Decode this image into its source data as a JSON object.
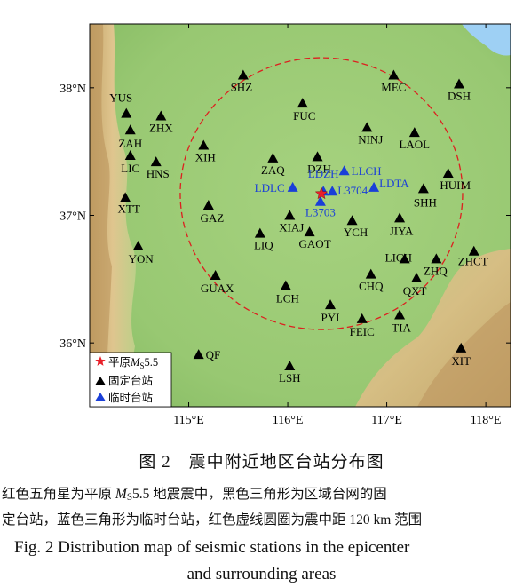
{
  "figure": {
    "lat_labels": [
      "38°N",
      "37°N",
      "36°N"
    ],
    "lon_labels": [
      "115°E",
      "116°E",
      "117°E",
      "118°E"
    ],
    "epicenter": {
      "lon": 116.34,
      "lat": 37.17
    },
    "fixed_stations": [
      {
        "code": "YUS",
        "lon": 114.37,
        "lat": 37.8
      },
      {
        "code": "ZAH",
        "lon": 114.41,
        "lat": 37.67
      },
      {
        "code": "LIC",
        "lon": 114.41,
        "lat": 37.47
      },
      {
        "code": "XTT",
        "lon": 114.36,
        "lat": 37.14
      },
      {
        "code": "YON",
        "lon": 114.49,
        "lat": 36.76
      },
      {
        "code": "ZHX",
        "lon": 114.72,
        "lat": 37.78
      },
      {
        "code": "HNS",
        "lon": 114.67,
        "lat": 37.42
      },
      {
        "code": "XIH",
        "lon": 115.15,
        "lat": 37.55
      },
      {
        "code": "SHZ",
        "lon": 115.55,
        "lat": 38.1
      },
      {
        "code": "FUC",
        "lon": 116.15,
        "lat": 37.88
      },
      {
        "code": "GAZ",
        "lon": 115.2,
        "lat": 37.08
      },
      {
        "code": "ZAQ",
        "lon": 115.85,
        "lat": 37.45
      },
      {
        "code": "DZH",
        "lon": 116.3,
        "lat": 37.46
      },
      {
        "code": "NINJ",
        "lon": 116.8,
        "lat": 37.69
      },
      {
        "code": "MEC",
        "lon": 117.07,
        "lat": 38.1
      },
      {
        "code": "DSH",
        "lon": 117.73,
        "lat": 38.03
      },
      {
        "code": "LAOL",
        "lon": 117.28,
        "lat": 37.65
      },
      {
        "code": "HUIM",
        "lon": 117.62,
        "lat": 37.33
      },
      {
        "code": "SHH",
        "lon": 117.37,
        "lat": 37.21
      },
      {
        "code": "XIAJ",
        "lon": 116.02,
        "lat": 37.0
      },
      {
        "code": "LIQ",
        "lon": 115.72,
        "lat": 36.86
      },
      {
        "code": "GAOT",
        "lon": 116.22,
        "lat": 36.87
      },
      {
        "code": "YCH",
        "lon": 116.65,
        "lat": 36.96
      },
      {
        "code": "JIYA",
        "lon": 117.13,
        "lat": 36.98
      },
      {
        "code": "GUAX",
        "lon": 115.27,
        "lat": 36.53
      },
      {
        "code": "LCH",
        "lon": 115.98,
        "lat": 36.45
      },
      {
        "code": "LICH",
        "lon": 117.18,
        "lat": 36.66
      },
      {
        "code": "ZHQ",
        "lon": 117.5,
        "lat": 36.66
      },
      {
        "code": "ZHCT",
        "lon": 117.88,
        "lat": 36.72
      },
      {
        "code": "CHQ",
        "lon": 116.84,
        "lat": 36.54
      },
      {
        "code": "QXT",
        "lon": 117.3,
        "lat": 36.51
      },
      {
        "code": "PYI",
        "lon": 116.43,
        "lat": 36.3
      },
      {
        "code": "FEIC",
        "lon": 116.75,
        "lat": 36.19
      },
      {
        "code": "TIA",
        "lon": 117.13,
        "lat": 36.22
      },
      {
        "code": "QF",
        "lon": 115.1,
        "lat": 35.91
      },
      {
        "code": "LSH",
        "lon": 116.02,
        "lat": 35.82
      },
      {
        "code": "XIT",
        "lon": 117.75,
        "lat": 35.96
      }
    ],
    "temp_stations": [
      {
        "code": "LDLC",
        "lon": 116.05,
        "lat": 37.22
      },
      {
        "code": "LDZH",
        "lon": 116.36,
        "lat": 37.19
      },
      {
        "code": "L3704",
        "lon": 116.45,
        "lat": 37.19
      },
      {
        "code": "LLCH",
        "lon": 116.57,
        "lat": 37.35
      },
      {
        "code": "LDTA",
        "lon": 116.87,
        "lat": 37.22
      },
      {
        "code": "L3703",
        "lon": 116.33,
        "lat": 37.11
      }
    ],
    "legend": {
      "epicenter_prefix": "平原",
      "epicenter_m": "M",
      "epicenter_sub": "S",
      "epicenter_mag": "5.5",
      "fixed": "固定台站",
      "temp": "临时台站"
    },
    "colors": {
      "epicenter": "#e8202a",
      "fixed": "#000000",
      "temp": "#1a3fd8",
      "circle": "#dd1f1f",
      "plain": "#9ccb78",
      "mountain": "#d7b77c",
      "sea": "#9ed0f4"
    }
  },
  "caption": {
    "cn_title": "图 2　震中附近地区台站分布图",
    "cn_desc_1_a": "红色五角星为平原 ",
    "cn_desc_1_m": "M",
    "cn_desc_1_sub": "S",
    "cn_desc_1_b": "5.5 地震震中，黑色三角形为区域台网的固",
    "cn_desc_2": "定台站，蓝色三角形为临时台站，红色虚线圆圈为震中距 120 km 范围",
    "en_title_1": "Fig. 2    Distribution map of seismic stations in the epicenter",
    "en_title_2": "and surrounding areas"
  }
}
